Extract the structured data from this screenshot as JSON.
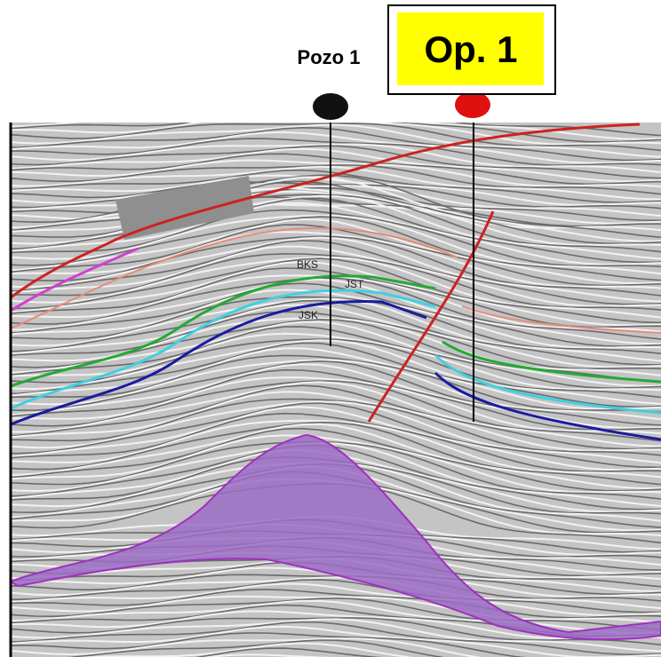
{
  "wells": [
    {
      "label": "Pozo 1"
    },
    {
      "label": "Op. 1"
    }
  ],
  "horizons": [
    {
      "label": "BKS"
    },
    {
      "label": "JST"
    },
    {
      "label": "JSK"
    }
  ]
}
